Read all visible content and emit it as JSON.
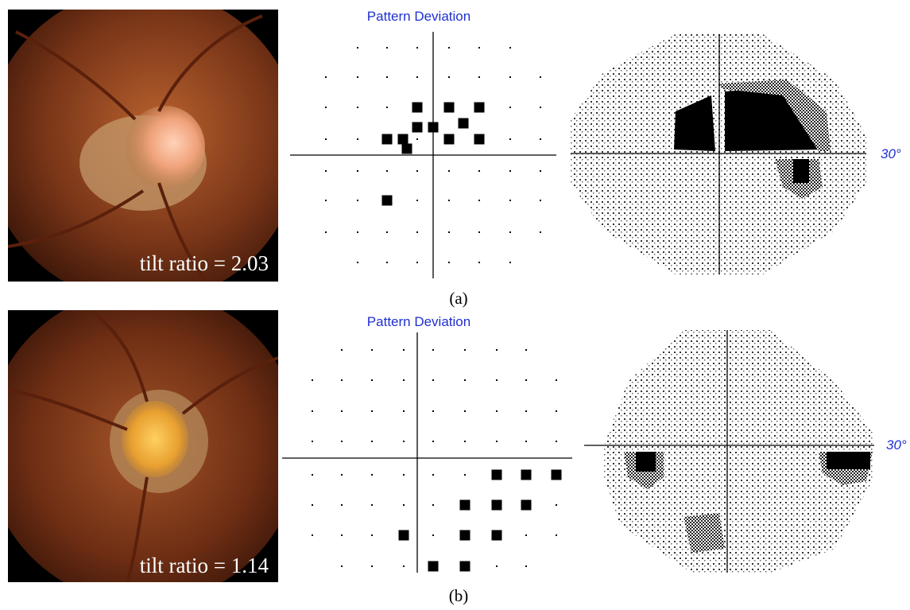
{
  "panels": [
    {
      "fundus_label": "tilt ratio = 2.03",
      "pattern_title": "Pattern Deviation",
      "degree_label": "30°",
      "caption": "(a)"
    },
    {
      "fundus_label": "tilt ratio = 1.14",
      "pattern_title": "Pattern Deviation",
      "degree_label": "30°",
      "caption": "(b)"
    }
  ]
}
